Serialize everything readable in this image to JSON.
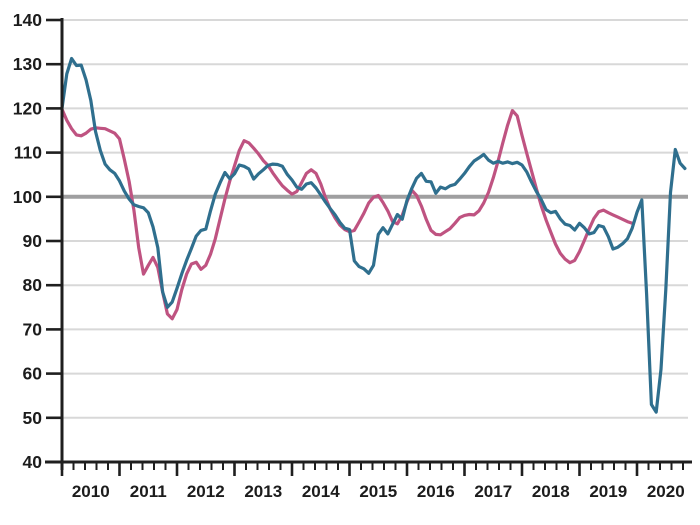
{
  "chart_data": {
    "type": "line",
    "title": "",
    "legend": "none",
    "grid": "horizontal-only",
    "x_axis": {
      "tick_labels": [
        "2010",
        "2011",
        "2012",
        "2013",
        "2014",
        "2015",
        "2016",
        "2017",
        "2018",
        "2019",
        "2020"
      ],
      "minor_tick_intervals_per_year": 5,
      "start": "2010-01",
      "end": "2020-11"
    },
    "y_axis": {
      "min": 40,
      "max": 140,
      "step": 10,
      "tick_labels": [
        "40",
        "50",
        "60",
        "70",
        "80",
        "90",
        "100",
        "110",
        "120",
        "130",
        "140"
      ],
      "baseline": 100
    },
    "series": [
      {
        "name": "pink-series",
        "color": "#bf5381",
        "start_month": "2010-01",
        "values": [
          119.8,
          117.3,
          115.4,
          114.0,
          113.8,
          114.4,
          115.3,
          115.6,
          115.5,
          115.4,
          114.9,
          114.4,
          113.1,
          108.5,
          103.5,
          97.0,
          88.5,
          82.5,
          84.5,
          86.3,
          84.0,
          78.5,
          73.5,
          72.4,
          74.5,
          79.0,
          82.5,
          84.8,
          85.2,
          83.6,
          84.5,
          87.0,
          90.5,
          95.0,
          99.5,
          103.5,
          107.0,
          110.5,
          112.7,
          112.2,
          111.0,
          109.7,
          108.2,
          107.1,
          105.4,
          103.9,
          102.5,
          101.5,
          100.6,
          101.2,
          103.2,
          105.3,
          106.1,
          105.3,
          102.9,
          99.8,
          97.2,
          95.2,
          93.6,
          92.6,
          92.1,
          92.4,
          94.3,
          96.3,
          98.6,
          99.9,
          100.3,
          98.7,
          96.8,
          94.4,
          93.9,
          95.8,
          98.9,
          101.5,
          100.3,
          97.9,
          94.9,
          92.4,
          91.5,
          91.4,
          92.1,
          92.8,
          94.0,
          95.3,
          95.8,
          96.0,
          95.9,
          96.8,
          98.6,
          101.0,
          104.3,
          108.0,
          112.2,
          116.2,
          119.5,
          118.3,
          113.9,
          109.8,
          105.8,
          101.8,
          98.0,
          94.8,
          92.0,
          89.3,
          87.2,
          85.9,
          85.1,
          85.6,
          87.6,
          90.1,
          92.7,
          95.1,
          96.6,
          97.0,
          96.4,
          95.9,
          95.4,
          94.9,
          94.4,
          94.0
        ]
      },
      {
        "name": "blue-series",
        "color": "#2f6f8e",
        "start_month": "2010-01",
        "values": [
          120.0,
          127.8,
          131.3,
          129.7,
          129.8,
          126.5,
          121.8,
          114.8,
          110.5,
          107.4,
          106.1,
          105.3,
          103.6,
          101.3,
          99.5,
          98.2,
          97.8,
          97.5,
          96.4,
          93.2,
          88.5,
          78.5,
          75.0,
          76.2,
          79.3,
          82.6,
          85.6,
          88.3,
          91.1,
          92.4,
          92.7,
          96.8,
          100.6,
          103.2,
          105.5,
          104.1,
          105.2,
          107.2,
          106.9,
          106.3,
          104.0,
          105.2,
          106.1,
          107.1,
          107.4,
          107.3,
          106.9,
          105.1,
          103.8,
          102.2,
          101.7,
          102.9,
          103.2,
          102.0,
          100.4,
          98.8,
          97.3,
          95.9,
          94.2,
          92.9,
          92.6,
          85.5,
          84.2,
          83.7,
          82.7,
          84.5,
          91.5,
          93.0,
          91.6,
          93.8,
          96.0,
          94.9,
          99.2,
          101.9,
          104.2,
          105.3,
          103.5,
          103.4,
          100.8,
          102.2,
          101.8,
          102.5,
          102.8,
          104.0,
          105.3,
          106.8,
          108.1,
          108.8,
          109.6,
          108.3,
          107.6,
          108.0,
          107.6,
          107.9,
          107.5,
          107.8,
          107.2,
          105.6,
          103.3,
          101.2,
          99.4,
          97.1,
          96.4,
          96.7,
          95.0,
          93.8,
          93.5,
          92.5,
          94.0,
          93.0,
          91.6,
          91.9,
          93.5,
          93.2,
          91.0,
          88.2,
          88.6,
          89.4,
          90.5,
          92.9,
          96.5,
          99.3,
          78.0,
          53.0,
          51.3,
          61.0,
          79.0,
          101.0,
          110.7,
          107.6,
          106.4
        ]
      }
    ],
    "style": {
      "background": "#ffffff",
      "grid_color": "#d8d8d8",
      "baseline_color": "#9f9fa0",
      "axis_color": "#1f1f1f",
      "label_color": "#1c1c1c",
      "line_width": 3.2
    }
  }
}
